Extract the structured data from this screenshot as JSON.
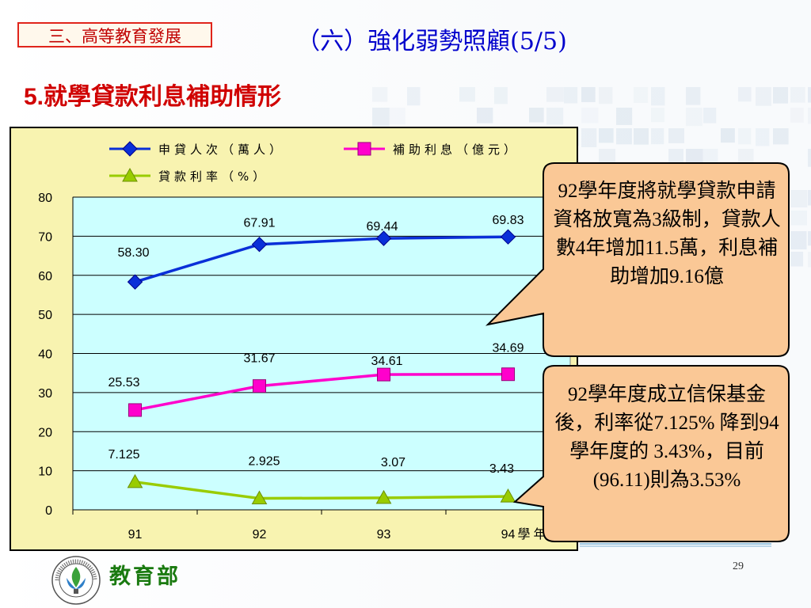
{
  "section_tag": "三、高等教育發展",
  "title": "（六）強化弱勢照顧(5/5)",
  "subtitle": {
    "number": "5.",
    "text": "就學貸款利息補助情形"
  },
  "chart_data": {
    "type": "line",
    "categories": [
      "91",
      "92",
      "93",
      "94"
    ],
    "xlabel": "學年度",
    "ylabel": "",
    "ylim": [
      0,
      80
    ],
    "yticks": [
      0,
      10,
      20,
      30,
      40,
      50,
      60,
      70,
      80
    ],
    "grid": true,
    "legend_position": "top",
    "series": [
      {
        "name": "申貸人次（萬人）",
        "values": [
          58.3,
          67.91,
          69.44,
          69.83
        ],
        "labels": [
          "58.30",
          "67.91",
          "69.44",
          "69.83"
        ],
        "color": "#0a2fd8",
        "marker": "diamond"
      },
      {
        "name": "補助利息（億元）",
        "values": [
          25.53,
          31.67,
          34.61,
          34.69
        ],
        "labels": [
          "25.53",
          "31.67",
          "34.61",
          "34.69"
        ],
        "color": "#ff00cc",
        "marker": "square"
      },
      {
        "name": "貸款利率（%）",
        "values": [
          7.125,
          2.925,
          3.07,
          3.43
        ],
        "labels": [
          "7.125",
          "2.925",
          "3.07",
          "3.43"
        ],
        "color": "#99cc00",
        "marker": "triangle"
      }
    ]
  },
  "callouts": [
    {
      "text": "92學年度將就學貸款申請資格放寬為3級制，貸款人數4年增加11.5萬，利息補助增加9.16億"
    },
    {
      "text": "92學年度成立信保基金後，利率從7.125% 降到94學年度的 3.43%，目前(96.11)則為3.53%"
    }
  ],
  "footer": {
    "ministry": "教育部",
    "page_number": "29"
  },
  "seal": {
    "ring_text": "MINISTRY OF EDUCATION",
    "inner_text": "教育部"
  },
  "colors": {
    "plot_bg": "#ccffff",
    "frame_bg": "#f8f3b0",
    "callout_fill": "#fac896"
  }
}
